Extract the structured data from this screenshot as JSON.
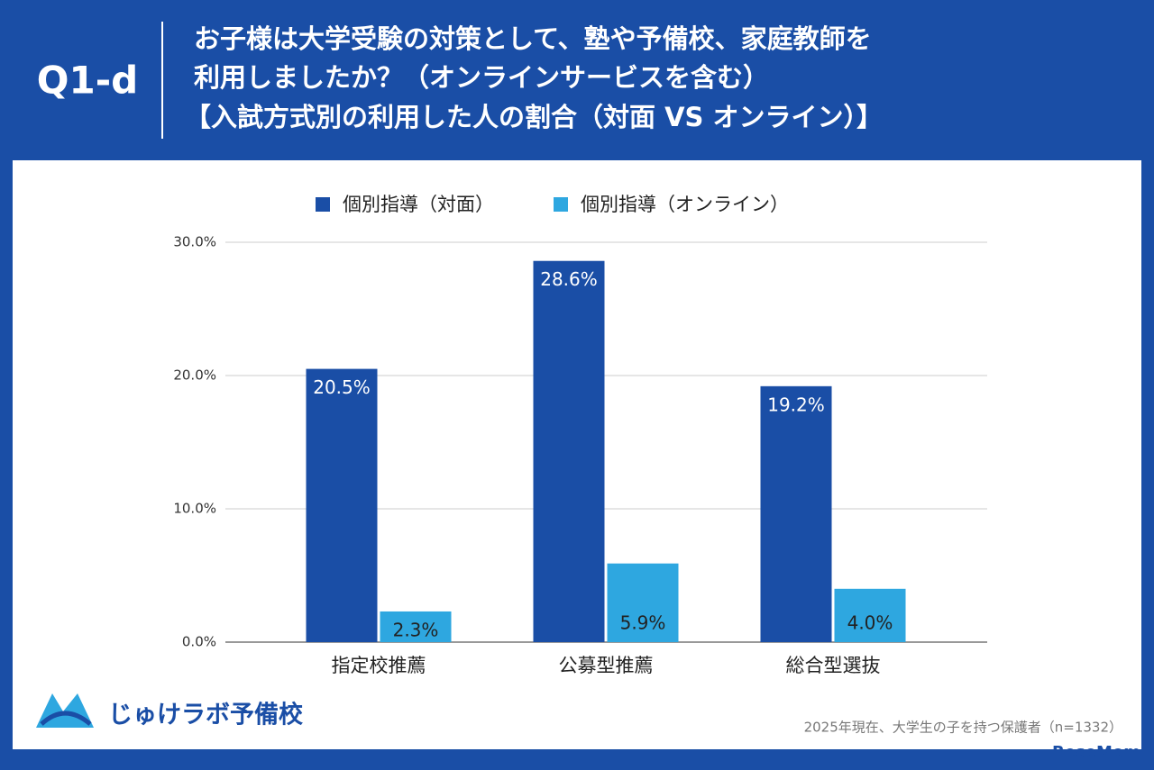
{
  "header": {
    "label": "Q1-d",
    "title_lines": [
      "お子様は大学受験の対策として、塾や予備校、家庭教師を",
      "利用しましたか？（オンラインサービスを含む）",
      "【入試方式別の利用した人の割合（対面 VS オンライン）】"
    ]
  },
  "chart_data": {
    "type": "bar",
    "categories": [
      "指定校推薦",
      "公募型推薦",
      "総合型選抜"
    ],
    "series": [
      {
        "name": "個別指導（対面）",
        "color": "#1a4ea6",
        "values": [
          20.5,
          28.6,
          19.2
        ],
        "value_labels": [
          "20.5%",
          "28.6%",
          "19.2%"
        ]
      },
      {
        "name": "個別指導（オンライン）",
        "color": "#2ea7e0",
        "values": [
          2.3,
          5.9,
          4.0
        ],
        "value_labels": [
          "2.3%",
          "5.9%",
          "4.0%"
        ]
      }
    ],
    "ylim": [
      0,
      30
    ],
    "yticks": [
      {
        "value": 0,
        "label": "0.0%"
      },
      {
        "value": 10,
        "label": "10.0%"
      },
      {
        "value": 20,
        "label": "20.0%"
      },
      {
        "value": 30,
        "label": "30.0%"
      }
    ],
    "grid": true,
    "legend": "top"
  },
  "footer": {
    "brand": "じゅけラボ予備校",
    "note": "2025年現在、大学生の子を持つ保護者（n=1332）",
    "watermark": "ReseMom"
  }
}
